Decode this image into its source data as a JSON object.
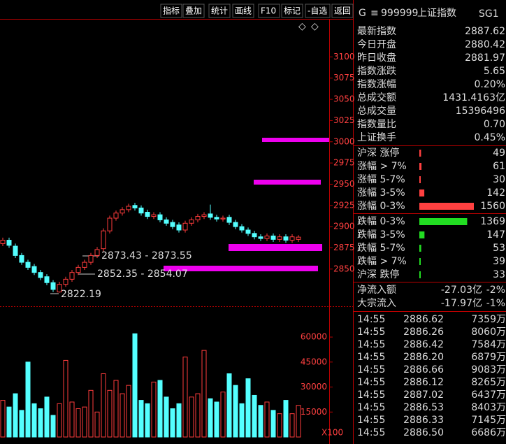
{
  "toolbar": [
    "指标",
    "叠加",
    "统计",
    "画线",
    "F10",
    "标记",
    "-自选",
    "返回"
  ],
  "header": {
    "prefix": "G",
    "menu": "≡",
    "code": "999999",
    "name": "上证指数",
    "tag": "SG1"
  },
  "quote": [
    {
      "label": "最新指数",
      "value": "2887.62",
      "color": "#ff4040"
    },
    {
      "label": "今日开盘",
      "value": "2880.42",
      "color": "#33ff33"
    },
    {
      "label": "昨日收盘",
      "value": "2881.97",
      "color": "#ffffff"
    },
    {
      "label": "指数涨跌",
      "value": "5.65",
      "color": "#ff4040"
    },
    {
      "label": "指数涨幅",
      "value": "0.20%",
      "color": "#ff4040"
    },
    {
      "label": "总成交额",
      "value": "1431.4163亿",
      "color": "#ffffff"
    },
    {
      "label": "总成交量",
      "value": "15396496",
      "color": "#ffffff"
    },
    {
      "label": "指数量比",
      "value": "0.70",
      "color": "#33ff33"
    },
    {
      "label": "上证换手",
      "value": "0.45%",
      "color": "#ffffff"
    }
  ],
  "breadth": [
    {
      "label": "沪深 涨停",
      "count": 49,
      "color": "#ff4040"
    },
    {
      "label": "涨幅 > 7%",
      "count": 61,
      "color": "#ff4040"
    },
    {
      "label": "涨幅 5-7%",
      "count": 30,
      "color": "#ff4040"
    },
    {
      "label": "涨幅 3-5%",
      "count": 142,
      "color": "#ff4040"
    },
    {
      "label": "涨幅 0-3%",
      "count": 1560,
      "color": "#ff4040"
    },
    {
      "label": "跌幅 0-3%",
      "count": 1369,
      "color": "#22dd22"
    },
    {
      "label": "跌幅 3-5%",
      "count": 147,
      "color": "#22dd22"
    },
    {
      "label": "跌幅 5-7%",
      "count": 53,
      "color": "#22dd22"
    },
    {
      "label": "跌幅 > 7%",
      "count": 39,
      "color": "#22dd22"
    },
    {
      "label": "沪深 跌停",
      "count": 33,
      "color": "#22dd22"
    }
  ],
  "flows": [
    {
      "label": "净流入额",
      "amount": "-27.03亿",
      "pct": "-2%"
    },
    {
      "label": "大宗流入",
      "amount": "-17.97亿",
      "pct": "-1%"
    }
  ],
  "ticks": [
    {
      "time": "14:55",
      "price": "2886.62",
      "volume": "7359万"
    },
    {
      "time": "14:55",
      "price": "2886.26",
      "volume": "8060万"
    },
    {
      "time": "14:55",
      "price": "2886.42",
      "volume": "7584万"
    },
    {
      "time": "14:55",
      "price": "2886.20",
      "volume": "6879万"
    },
    {
      "time": "14:55",
      "price": "2886.66",
      "volume": "9083万"
    },
    {
      "time": "14:55",
      "price": "2886.12",
      "volume": "8265万"
    },
    {
      "time": "14:55",
      "price": "2887.02",
      "volume": "6437万"
    },
    {
      "time": "14:55",
      "price": "2886.53",
      "volume": "8403万"
    },
    {
      "time": "14:55",
      "price": "2886.33",
      "volume": "7145万"
    },
    {
      "time": "14:55",
      "price": "2886.50",
      "volume": "6686万"
    }
  ],
  "price_chart": {
    "type": "candlestick",
    "open": [
      2880,
      2884,
      2877,
      2866,
      2858,
      2853,
      2846,
      2841,
      2834,
      2823,
      2832,
      2838,
      2846,
      2852,
      2858,
      2866,
      2874,
      2895,
      2910,
      2916,
      2920,
      2925,
      2922,
      2917,
      2912,
      2914,
      2908,
      2905,
      2902,
      2896,
      2904,
      2908,
      2912,
      2915,
      2911,
      2909,
      2911,
      2905,
      2900,
      2896,
      2892,
      2888,
      2886,
      2889,
      2885,
      2888,
      2884,
      2885
    ],
    "high": [
      2887,
      2887,
      2880,
      2869,
      2861,
      2856,
      2849,
      2844,
      2837,
      2835,
      2841,
      2849,
      2855,
      2861,
      2869,
      2876,
      2898,
      2913,
      2919,
      2923,
      2927,
      2928,
      2925,
      2920,
      2917,
      2917,
      2911,
      2908,
      2905,
      2907,
      2911,
      2915,
      2917,
      2926,
      2914,
      2913,
      2914,
      2908,
      2903,
      2899,
      2895,
      2891,
      2892,
      2892,
      2891,
      2891,
      2891,
      2890
    ],
    "low": [
      2877,
      2875,
      2863,
      2855,
      2849,
      2843,
      2837,
      2831,
      2823,
      2822.19,
      2829,
      2835,
      2843,
      2849,
      2855,
      2863,
      2871,
      2892,
      2907,
      2913,
      2917,
      2919,
      2913,
      2909,
      2909,
      2905,
      2901,
      2897,
      2893,
      2893,
      2901,
      2905,
      2909,
      2908,
      2906,
      2906,
      2902,
      2897,
      2893,
      2889,
      2885,
      2883,
      2883,
      2882,
      2882,
      2881,
      2881,
      2882
    ],
    "close": [
      2884,
      2878,
      2866,
      2858,
      2852,
      2846,
      2840,
      2834,
      2826,
      2832,
      2838,
      2846,
      2852,
      2858,
      2866,
      2873,
      2895,
      2910,
      2916,
      2920,
      2924,
      2922,
      2916,
      2912,
      2914,
      2908,
      2904,
      2900,
      2896,
      2904,
      2908,
      2912,
      2914,
      2911,
      2909,
      2910,
      2905,
      2900,
      2896,
      2892,
      2888,
      2886,
      2889,
      2885,
      2888,
      2884,
      2888,
      2887.62
    ],
    "up_color": "#ff3c3c",
    "down_color": "#54ffff",
    "ylim": [
      2807,
      3144
    ],
    "yticks": [
      3100,
      3075,
      3050,
      3025,
      3000,
      2975,
      2950,
      2925,
      2900,
      2875,
      2850
    ],
    "annotations": [
      "2873.43 - 2873.55",
      "2852.35 - 2854.07",
      "2822.19"
    ]
  },
  "volume_chart": {
    "type": "bar",
    "values": [
      22000,
      18000,
      26000,
      16000,
      45000,
      20000,
      17000,
      24000,
      13000,
      20000,
      46000,
      21000,
      17000,
      18000,
      28000,
      15000,
      38000,
      28000,
      34000,
      26000,
      31000,
      62000,
      22000,
      20000,
      33000,
      34000,
      24000,
      17000,
      20000,
      48000,
      24000,
      26000,
      52000,
      23000,
      21000,
      27000,
      38000,
      31000,
      20000,
      35000,
      25000,
      19000,
      21000,
      16000,
      14000,
      22000,
      14000,
      19000
    ],
    "ylim": [
      0,
      76400
    ],
    "yticks": [
      15000,
      30000,
      45000,
      60000
    ],
    "unit": "X100"
  }
}
